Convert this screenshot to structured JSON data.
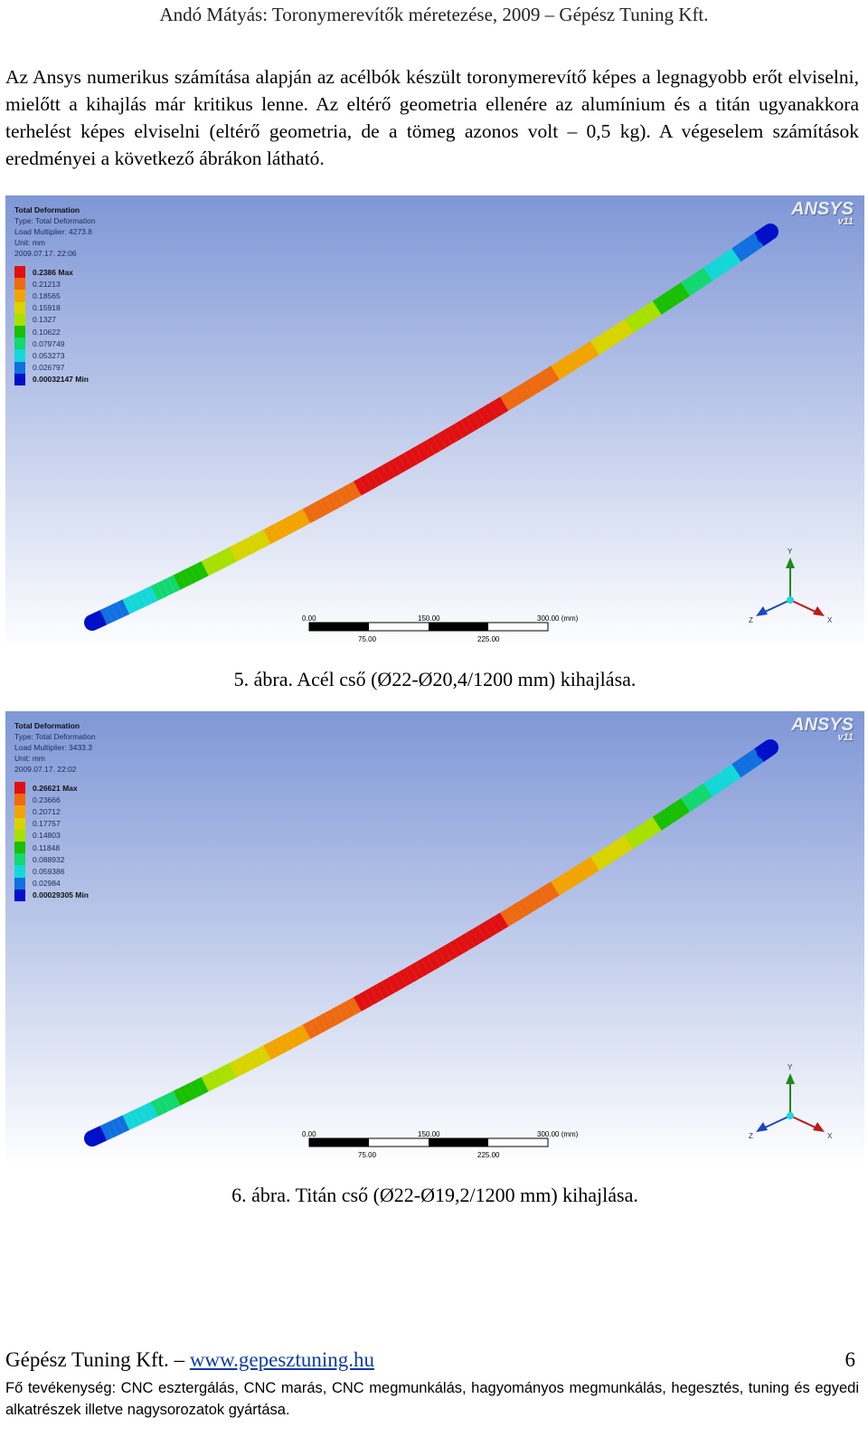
{
  "header": "Andó Mátyás: Toronymerevítők méretezése, 2009 – Gépész Tuning Kft.",
  "paragraph": "Az Ansys numerikus számítása alapján az acélbók készült toronymerevítő képes a legnagyobb erőt elviselni, mielőtt a kihajlás már kritikus lenne. Az eltérő geometria ellenére az alumínium és a titán ugyanakkora terhelést képes elviselni (eltérő geometria, de a tömeg azonos volt – 0,5 kg). A végeselem számítások eredményei a következő ábrákon látható.",
  "logo": {
    "name": "ANSYS",
    "version": "v11"
  },
  "figures": [
    {
      "meta": {
        "title": "Total Deformation",
        "type": "Type: Total Deformation",
        "load": "Load Multiplier: 4273.8",
        "unit": "Unit: mm",
        "date": "2009.07.17. 22:06"
      },
      "legend": [
        "0.2386 Max",
        "0.21213",
        "0.18565",
        "0.15918",
        "0.1327",
        "0.10622",
        "0.079749",
        "0.053273",
        "0.026797",
        "0.00032147 Min"
      ],
      "scale": {
        "t0": "0.00",
        "t150": "150.00",
        "t300": "300.00 (mm)",
        "t75": "75.00",
        "t225": "225.00"
      },
      "axes": {
        "y": "Y",
        "z": "Z",
        "x": "X"
      },
      "caption": "5. ábra. Acél cső (Ø22-Ø20,4/1200 mm) kihajlása."
    },
    {
      "meta": {
        "title": "Total Deformation",
        "type": "Type: Total Deformation",
        "load": "Load Multiplier: 3433.3",
        "unit": "Unit: mm",
        "date": "2009.07.17. 22:02"
      },
      "legend": [
        "0.26621 Max",
        "0.23666",
        "0.20712",
        "0.17757",
        "0.14803",
        "0.11848",
        "0.088932",
        "0.059386",
        "0.02984",
        "0.00029305 Min"
      ],
      "scale": {
        "t0": "0.00",
        "t150": "150.00",
        "t300": "300.00 (mm)",
        "t75": "75.00",
        "t225": "225.00"
      },
      "axes": {
        "y": "Y",
        "z": "Z",
        "x": "X"
      },
      "caption": "6. ábra. Titán cső (Ø22-Ø19,2/1200 mm) kihajlása."
    }
  ],
  "colors": {
    "legend_scale": [
      "#e01010",
      "#ee6a10",
      "#f2a400",
      "#d8d400",
      "#a8e000",
      "#18c000",
      "#12d870",
      "#14d8d8",
      "#1070e0",
      "#0010c8"
    ],
    "bg_top": "#7f97d6",
    "bg_bottom": "#ffffff"
  },
  "footer": {
    "company": "Gépész Tuning Kft.",
    "dash": " – ",
    "link": "www.gepesztuning.hu",
    "page": "6",
    "activity": "Fő tevékenység: CNC esztergálás, CNC marás, CNC megmunkálás, hagyományos megmunkálás, hegesztés, tuning és egyedi alkatrészek illetve nagysorozatok gyártása."
  }
}
